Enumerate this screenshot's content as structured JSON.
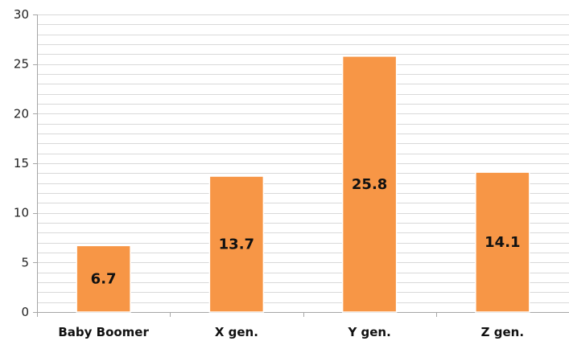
{
  "chart_data": {
    "type": "bar",
    "categories": [
      "Baby Boomer",
      "X gen.",
      "Y gen.",
      "Z gen."
    ],
    "values": [
      6.7,
      13.7,
      25.8,
      14.1
    ],
    "data_labels": [
      "6.7",
      "13.7",
      "25.8",
      "14.1"
    ],
    "ylim": [
      0,
      30
    ],
    "yticks": [
      "0",
      "5",
      "10",
      "15",
      "20",
      "25",
      "30"
    ],
    "minor_gridline_step": 1,
    "grid": true,
    "legend": "none",
    "bar_color": "#F79646",
    "bar_edge_color": "#FFFFFF",
    "gridline_color": "#D9D9D9",
    "axis_color": "#A6A6A6"
  }
}
